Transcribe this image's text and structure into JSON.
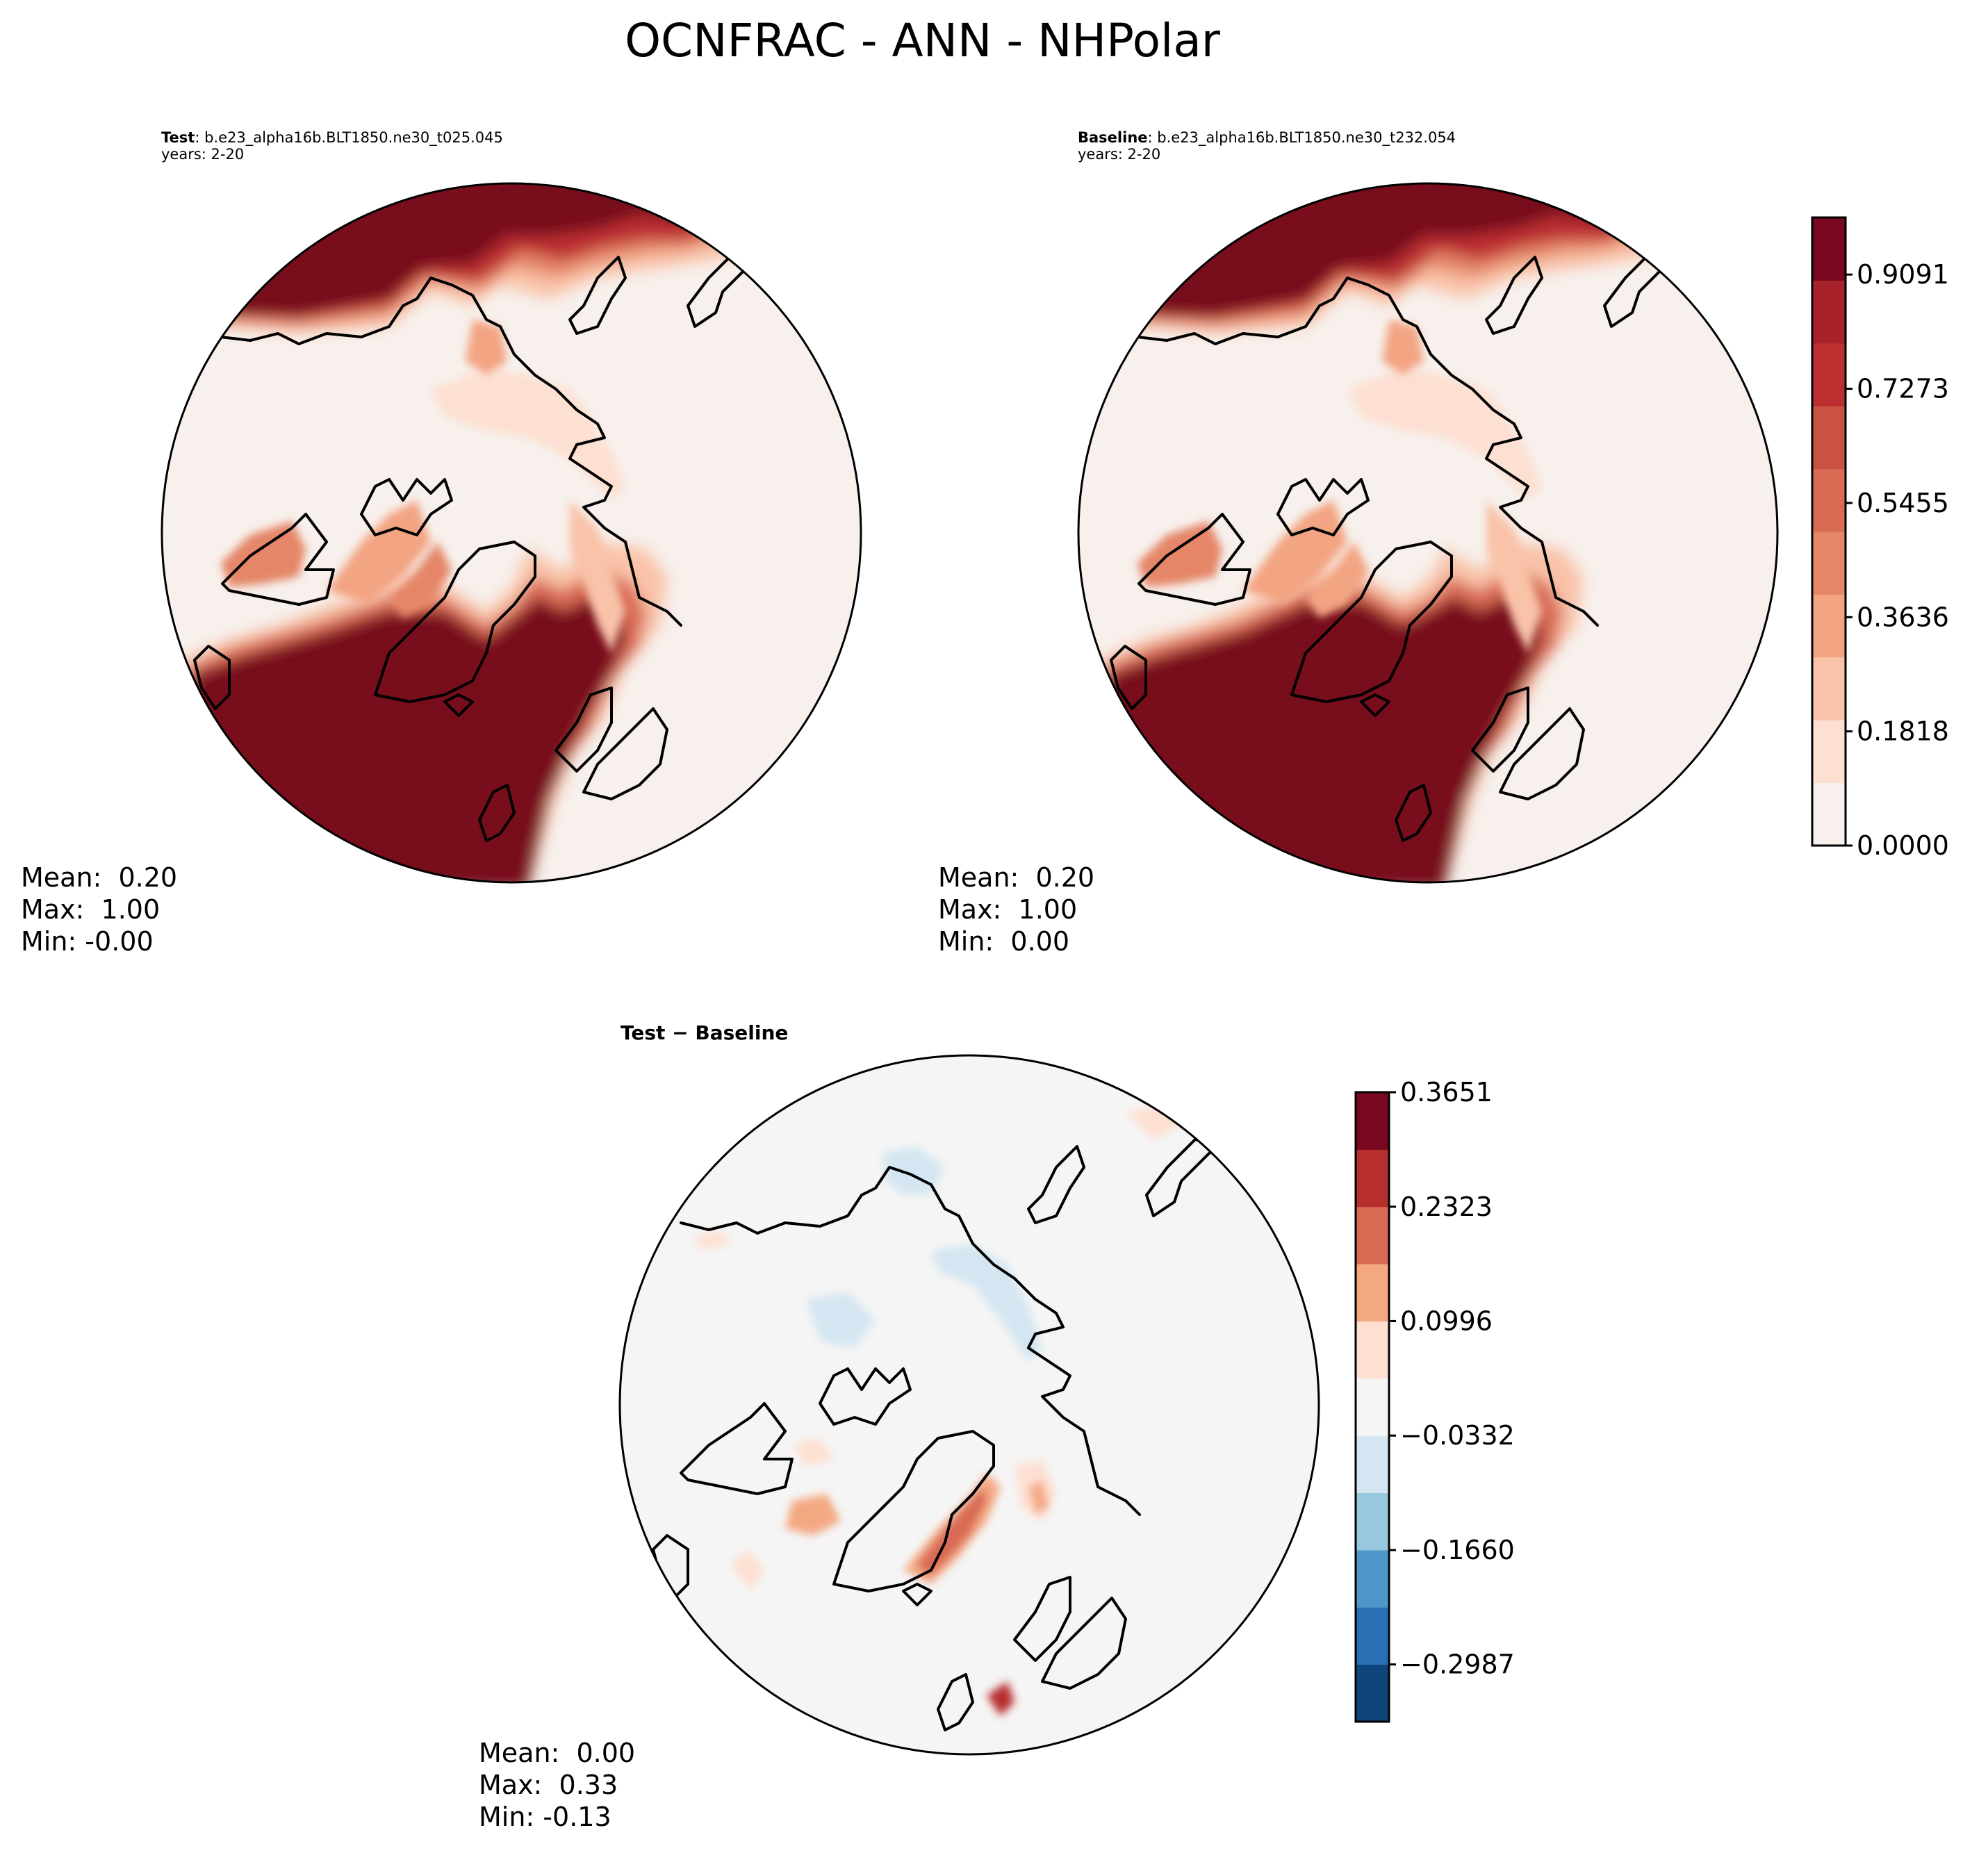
{
  "title": "OCNFRAC - ANN - NHPolar",
  "panels": {
    "test": {
      "label_bold": "Test",
      "label_rest": ": b.e23_alpha16b.BLT1850.ne30_t025.045",
      "years": "years: 2-20",
      "stats": {
        "mean": "Mean:  0.20",
        "max": "Max:  1.00",
        "min": "Min: -0.00"
      }
    },
    "baseline": {
      "label_bold": "Baseline",
      "label_rest": ": b.e23_alpha16b.BLT1850.ne30_t232.054",
      "years": "years: 2-20",
      "stats": {
        "mean": "Mean:  0.20",
        "max": "Max:  1.00",
        "min": "Min:  0.00"
      }
    },
    "diff": {
      "title": "Test − Baseline",
      "stats": {
        "mean": "Mean:  0.00",
        "max": "Max:  0.33",
        "min": "Min: -0.13"
      }
    }
  },
  "chart_data": [
    {
      "type": "heatmap",
      "name": "test",
      "projection": "north-polar-stereographic",
      "variable": "OCNFRAC",
      "season": "ANN",
      "region": "NHPolar",
      "case": "b.e23_alpha16b.BLT1850.ne30_t025.045",
      "years": "2-20",
      "mean": 0.2,
      "max": 1.0,
      "min": -0.0,
      "colormap": "Reds",
      "levels": [
        0.0,
        0.0909,
        0.1818,
        0.2727,
        0.3636,
        0.4545,
        0.5455,
        0.6364,
        0.7273,
        0.8182,
        0.9091,
        1.0
      ]
    },
    {
      "type": "heatmap",
      "name": "baseline",
      "projection": "north-polar-stereographic",
      "variable": "OCNFRAC",
      "season": "ANN",
      "region": "NHPolar",
      "case": "b.e23_alpha16b.BLT1850.ne30_t232.054",
      "years": "2-20",
      "mean": 0.2,
      "max": 1.0,
      "min": 0.0,
      "colormap": "Reds",
      "levels": [
        0.0,
        0.0909,
        0.1818,
        0.2727,
        0.3636,
        0.4545,
        0.5455,
        0.6364,
        0.7273,
        0.8182,
        0.9091,
        1.0
      ],
      "colorbar_ticks": [
        "0.0000",
        "0.1818",
        "0.3636",
        "0.5455",
        "0.7273",
        "0.9091"
      ]
    },
    {
      "type": "heatmap",
      "name": "difference",
      "title": "Test − Baseline",
      "projection": "north-polar-stereographic",
      "mean": 0.0,
      "max": 0.33,
      "min": -0.13,
      "colormap": "RdBu_r",
      "levels": [
        -0.3651,
        -0.2987,
        -0.2323,
        -0.166,
        -0.0996,
        -0.0332,
        0.0332,
        0.0996,
        0.166,
        0.2323,
        0.2987,
        0.3651
      ],
      "colorbar_ticks": [
        "−0.2987",
        "−0.1660",
        "−0.0332",
        "0.0996",
        "0.2323",
        "0.3651"
      ]
    }
  ],
  "colors": {
    "reds": [
      "#f7f0ec",
      "#fde0d2",
      "#f9c3a9",
      "#f3a482",
      "#e58668",
      "#d96a54",
      "#c95242",
      "#bb2f31",
      "#a8222b",
      "#78071f"
    ],
    "rdbu": [
      "#0f457a",
      "#2870b3",
      "#4e97c8",
      "#98c8e0",
      "#d4e6f1",
      "#f5f5f5",
      "#fde0d2",
      "#f4a882",
      "#d96a54",
      "#b72e2e",
      "#78071f"
    ],
    "land_diff": "#f5f5f5",
    "ocean_low": "#f7f0ec",
    "ocean_high": "#78071f"
  }
}
